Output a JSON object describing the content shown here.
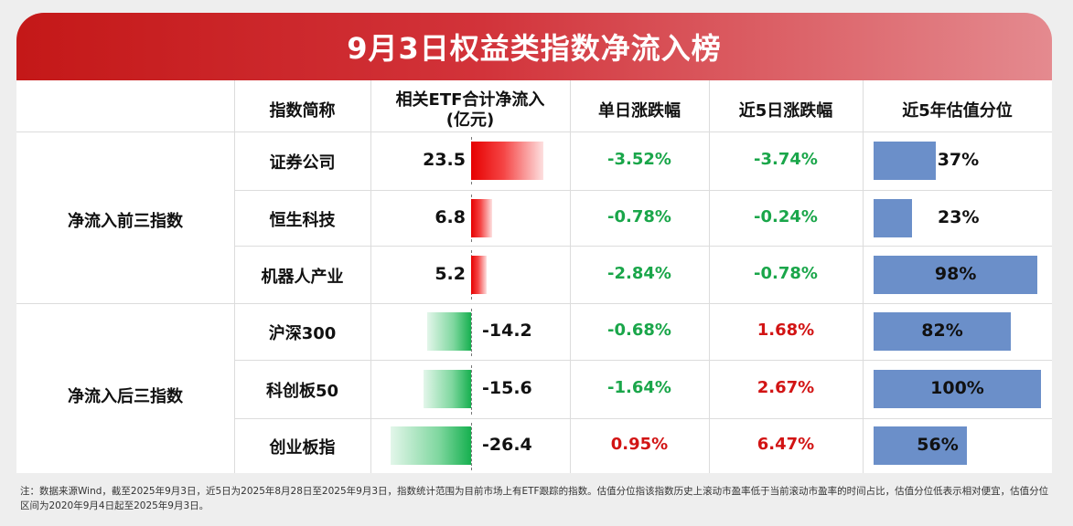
{
  "title": "9月3日权益类指数净流入榜",
  "headers": {
    "name": "指数简称",
    "flow_line1": "相关ETF合计净流入",
    "flow_line2": "(亿元)",
    "daily": "单日涨跌幅",
    "five_day": "近5日涨跌幅",
    "valuation": "近5年估值分位"
  },
  "groups": {
    "top": "净流入前三指数",
    "bottom": "净流入后三指数"
  },
  "rows": [
    {
      "name": "证券公司",
      "flow": "23.5",
      "flow_value": 23.5,
      "daily": "-3.52%",
      "five_day": "-3.74%",
      "valuation": "37%",
      "valuation_value": 37
    },
    {
      "name": "恒生科技",
      "flow": "6.8",
      "flow_value": 6.8,
      "daily": "-0.78%",
      "five_day": "-0.24%",
      "valuation": "23%",
      "valuation_value": 23
    },
    {
      "name": "机器人产业",
      "flow": "5.2",
      "flow_value": 5.2,
      "daily": "-2.84%",
      "five_day": "-0.78%",
      "valuation": "98%",
      "valuation_value": 98
    },
    {
      "name": "沪深300",
      "flow": "-14.2",
      "flow_value": -14.2,
      "daily": "-0.68%",
      "five_day": "1.68%",
      "valuation": "82%",
      "valuation_value": 82
    },
    {
      "name": "科创板50",
      "flow": "-15.6",
      "flow_value": -15.6,
      "daily": "-1.64%",
      "five_day": "2.67%",
      "valuation": "100%",
      "valuation_value": 100
    },
    {
      "name": "创业板指",
      "flow": "-26.4",
      "flow_value": -26.4,
      "daily": "0.95%",
      "five_day": "6.47%",
      "valuation": "56%",
      "valuation_value": 56
    }
  ],
  "colors": {
    "positive": "#d21414",
    "negative": "#1aa64a",
    "valuation_bar": "#6b8fc9",
    "banner": "#c41818"
  },
  "note": "注：数据来源Wind，截至2025年9月3日，近5日为2025年8月28日至2025年9月3日，指数统计范围为目前市场上有ETF跟踪的指数。估值分位指该指数历史上滚动市盈率低于当前滚动市盈率的时间占比，估值分位低表示相对便宜，估值分位区间为2020年9月4日起至2025年9月3日。"
}
